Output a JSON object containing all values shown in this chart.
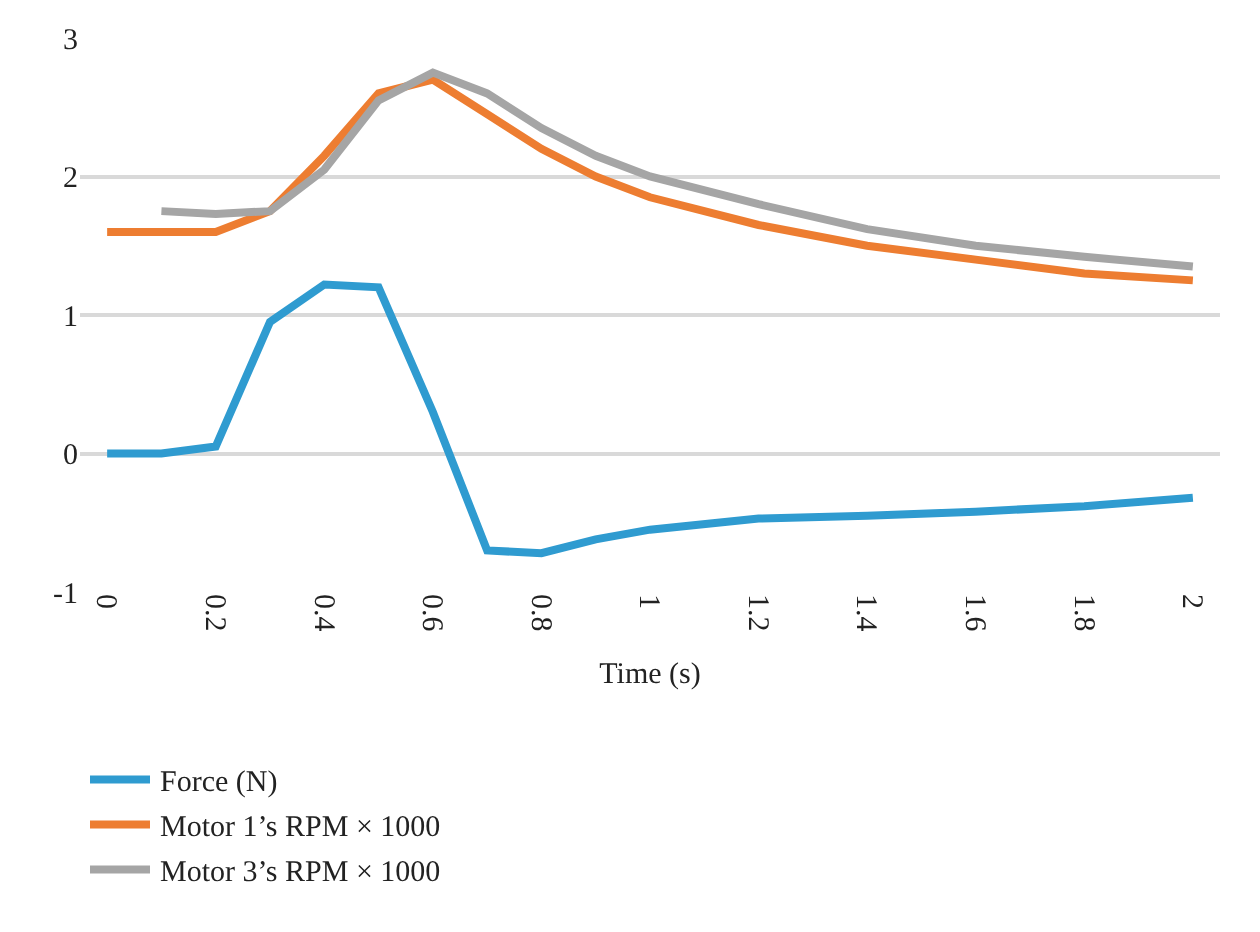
{
  "chart_data": {
    "type": "line",
    "xlabel": "Time (s)",
    "x": [
      0,
      0.1,
      0.2,
      0.3,
      0.4,
      0.5,
      0.6,
      0.7,
      0.8,
      0.9,
      1.0,
      1.2,
      1.4,
      1.6,
      1.8,
      2.0
    ],
    "series": [
      {
        "name": "Force (N)",
        "color": "#2f9bd0",
        "values": [
          0,
          0,
          0.05,
          0.95,
          1.22,
          1.2,
          0.3,
          -0.7,
          -0.72,
          -0.62,
          -0.55,
          -0.47,
          -0.45,
          -0.42,
          -0.38,
          -0.32
        ]
      },
      {
        "name": "Motor 1’s RPM × 1000",
        "color": "#ed7d31",
        "values": [
          1.6,
          1.6,
          1.6,
          1.75,
          2.15,
          2.6,
          2.7,
          2.45,
          2.2,
          2.0,
          1.85,
          1.65,
          1.5,
          1.4,
          1.3,
          1.25
        ]
      },
      {
        "name": "Motor 3’s RPM × 1000",
        "color": "#a5a5a5",
        "x": [
          0.1,
          0.2,
          0.3,
          0.4,
          0.5,
          0.6,
          0.7,
          0.8,
          0.9,
          1.0,
          1.2,
          1.4,
          1.6,
          1.8,
          2.0
        ],
        "values": [
          1.75,
          1.73,
          1.75,
          2.05,
          2.55,
          2.75,
          2.6,
          2.35,
          2.15,
          2.0,
          1.8,
          1.62,
          1.5,
          1.42,
          1.35
        ]
      }
    ],
    "xlim": [
      -0.05,
      2.05
    ],
    "xticks": [
      0,
      0.2,
      0.4,
      0.6,
      0.8,
      1,
      1.2,
      1.4,
      1.6,
      1.8,
      2
    ],
    "ylim": [
      -1,
      3
    ],
    "yticks": [
      -1,
      0,
      1,
      2,
      3
    ],
    "grid": "y",
    "legend": "bottom",
    "marker": "none",
    "line_style": "solid"
  }
}
